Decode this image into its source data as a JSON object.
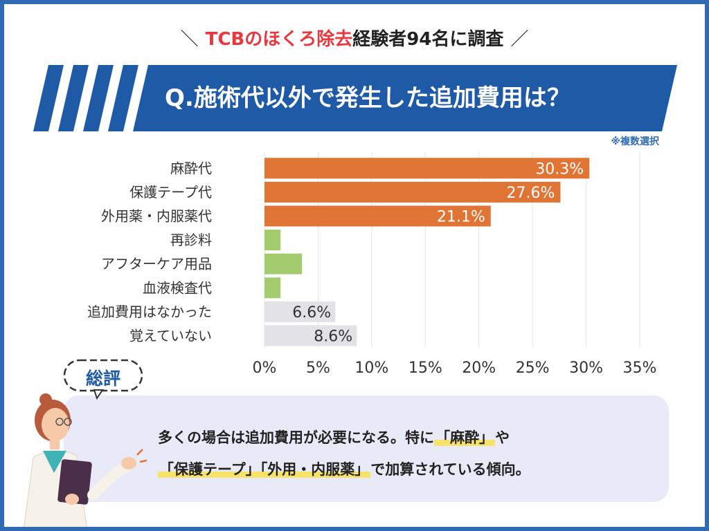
{
  "header": {
    "accent_text": "TCBのほくろ除去",
    "rest_text": "経験者94名に調査",
    "slash_left": "＼",
    "slash_right": "／"
  },
  "banner": {
    "question": "Q.施術代以外で発生した追加費用は？"
  },
  "note": "※複数選択",
  "colors": {
    "primary_bar": "#e07434",
    "secondary_bar": "#a4cc6e",
    "neutral_bar": "#e2e2e7",
    "banner": "#1f5aa6",
    "page_border": "#2f6bb3"
  },
  "chart_data": {
    "type": "bar",
    "orientation": "horizontal",
    "categories": [
      "麻酔代",
      "保護テープ代",
      "外用薬・内服薬代",
      "再診料",
      "アフターケア用品",
      "血液検査代",
      "追加費用はなかった",
      "覚えていない"
    ],
    "values": [
      30.3,
      27.6,
      21.1,
      1.5,
      3.5,
      1.5,
      6.6,
      8.6
    ],
    "data_labels": [
      "30.3%",
      "27.6%",
      "21.1%",
      "",
      "",
      "",
      "6.6%",
      "8.6%"
    ],
    "bar_groups": [
      "primary",
      "primary",
      "primary",
      "secondary",
      "secondary",
      "secondary",
      "neutral",
      "neutral"
    ],
    "xlim": [
      0,
      35
    ],
    "ticks": [
      "0%",
      "5%",
      "10%",
      "15%",
      "20%",
      "25%",
      "30%",
      "35%"
    ],
    "grid": true,
    "xlabel": "",
    "ylabel": ""
  },
  "summary": {
    "title": "総評",
    "line1_pre": "多くの場合は追加費用が必要になる。特に",
    "line1_hl": "「麻酔」",
    "line1_post": "や",
    "line2_hl": "「保護テープ」「外用・内服薬」",
    "line2_post": "で加算されている傾向。"
  }
}
